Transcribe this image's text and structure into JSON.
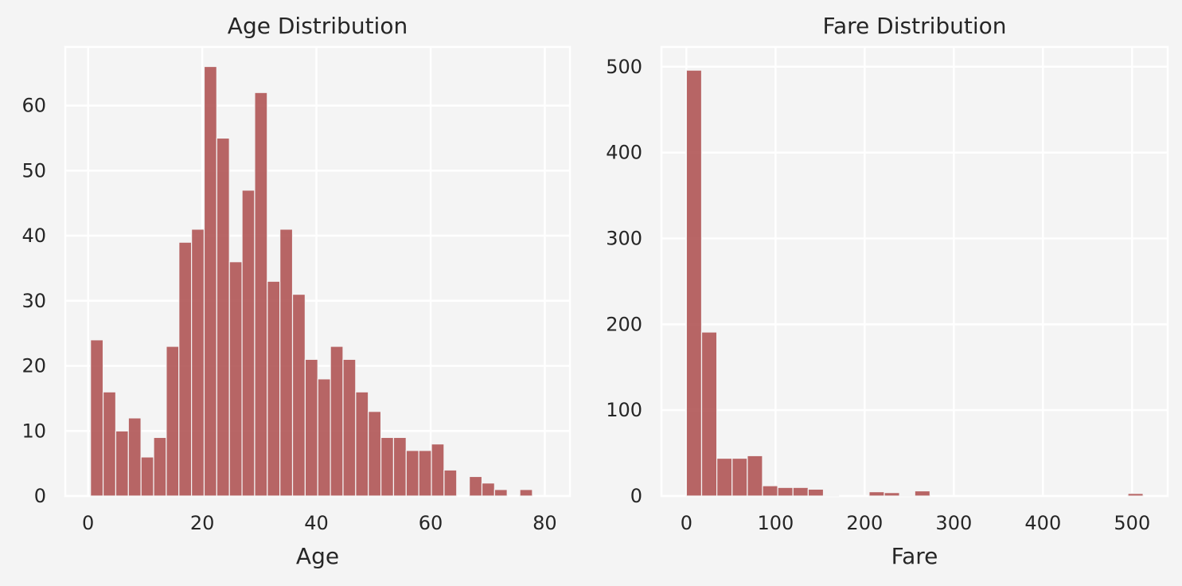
{
  "figure": {
    "background": "#f4f4f4",
    "panel_color": "#f4f4f4",
    "grid_color": "#ffffff",
    "bar_color": "#b05555"
  },
  "chart_data": [
    {
      "type": "bar",
      "title": "Age Distribution",
      "xlabel": "Age",
      "ylabel": "",
      "xlim": [
        -4.0,
        84.4
      ],
      "ylim": [
        0,
        69
      ],
      "xticks": [
        0,
        20,
        40,
        60,
        80
      ],
      "yticks": [
        0,
        10,
        20,
        30,
        40,
        50,
        60
      ],
      "grid": true,
      "bin_start": 0.42,
      "bin_width": 2.212,
      "values": [
        24,
        16,
        10,
        12,
        6,
        9,
        23,
        39,
        41,
        66,
        55,
        36,
        47,
        62,
        33,
        41,
        31,
        21,
        18,
        23,
        21,
        16,
        13,
        9,
        9,
        7,
        7,
        8,
        4,
        0,
        3,
        2,
        1,
        0,
        1
      ]
    },
    {
      "type": "bar",
      "title": "Fare Distribution",
      "xlabel": "Fare",
      "ylabel": "",
      "xlim": [
        -28.0,
        539.9
      ],
      "ylim": [
        0,
        523
      ],
      "xticks": [
        0,
        100,
        200,
        300,
        400,
        500
      ],
      "yticks": [
        0,
        100,
        200,
        300,
        400,
        500
      ],
      "grid": true,
      "bin_start": 0,
      "bin_width": 17.079,
      "values": [
        496,
        191,
        44,
        44,
        47,
        12,
        10,
        10,
        8,
        1,
        0,
        0,
        5,
        4,
        1,
        6,
        0,
        0,
        0,
        0,
        0,
        0,
        0,
        0,
        0,
        0,
        0,
        0,
        0,
        3
      ]
    }
  ]
}
